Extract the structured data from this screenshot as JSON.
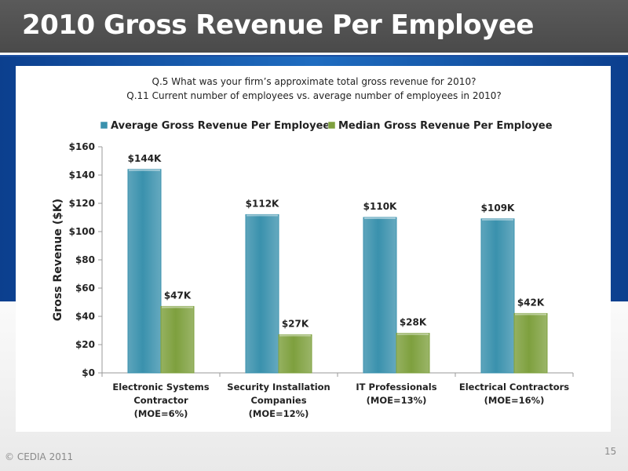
{
  "slide": {
    "title": "2010 Gross Revenue Per Employee",
    "question_1": "Q.5 What was your firm’s approximate total gross revenue for 2010?",
    "question_2": "Q.11 Current number of employees vs. average number of employees in 2010?",
    "footer": "© CEDIA 2011",
    "page_number": "15"
  },
  "colors": {
    "average": "#3a91ad",
    "median": "#7ea03e",
    "title_bar": "#555555",
    "band": "#1a5db5"
  },
  "chart_data": {
    "type": "bar",
    "categories": [
      [
        "Electronic Systems",
        "Contractor",
        "(MOE=6%)"
      ],
      [
        "Security Installation",
        "Companies",
        "(MOE=12%)"
      ],
      [
        "IT Professionals",
        "(MOE=13%)"
      ],
      [
        "Electrical Contractors",
        "(MOE=16%)"
      ]
    ],
    "series": [
      {
        "name": "Average Gross Revenue Per Employee",
        "values": [
          144,
          112,
          110,
          109
        ],
        "labels": [
          "$144K",
          "$112K",
          "$110K",
          "$109K"
        ]
      },
      {
        "name": "Median Gross Revenue Per Employee",
        "values": [
          47,
          27,
          28,
          42
        ],
        "labels": [
          "$47K",
          "$27K",
          "$28K",
          "$42K"
        ]
      }
    ],
    "ylabel": "Gross Revenue ($K)",
    "ylim": [
      0,
      160
    ],
    "yticks": [
      0,
      20,
      40,
      60,
      80,
      100,
      120,
      140,
      160
    ],
    "ytick_labels": [
      "$0",
      "$20",
      "$40",
      "$60",
      "$80",
      "$100",
      "$120",
      "$140",
      "$160"
    ],
    "legend_position": "top",
    "grid": false
  }
}
